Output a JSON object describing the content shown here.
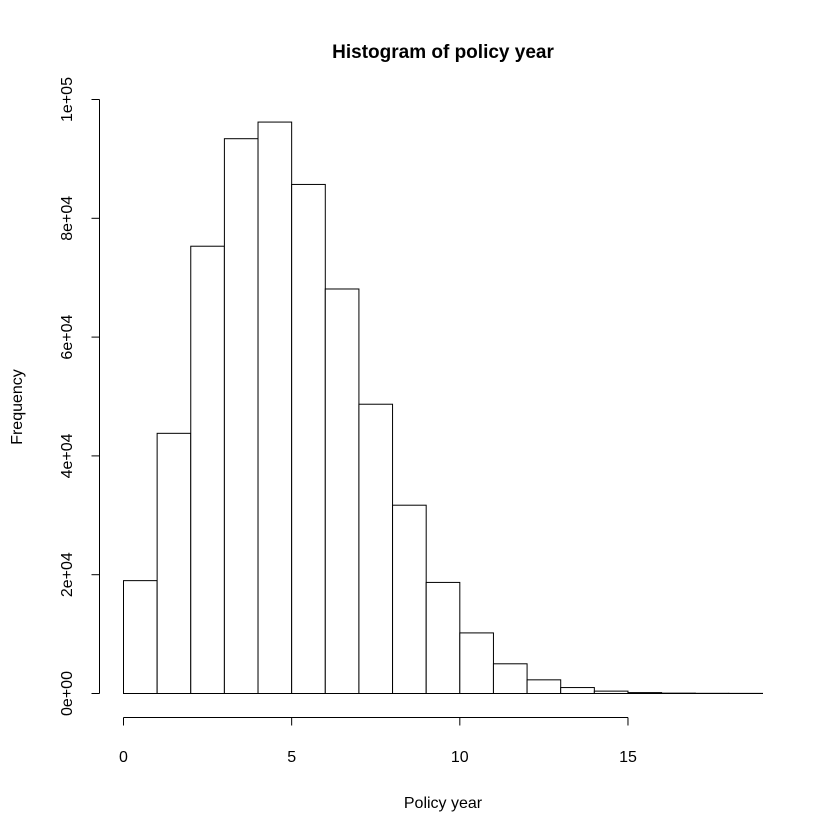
{
  "chart_data": {
    "type": "bar",
    "title": "Histogram of policy year",
    "xlabel": "Policy year",
    "ylabel": "Frequency",
    "bin_edges": [
      0,
      1,
      2,
      3,
      4,
      5,
      6,
      7,
      8,
      9,
      10,
      11,
      12,
      13,
      14,
      15,
      16,
      17,
      18,
      19
    ],
    "values": [
      19000,
      43800,
      75300,
      93400,
      96200,
      85700,
      68100,
      48700,
      31700,
      18700,
      10200,
      5000,
      2300,
      1000,
      400,
      150,
      60,
      30,
      20
    ],
    "xlim": [
      0,
      19
    ],
    "ylim": [
      0,
      100000
    ],
    "xticks": [
      0,
      5,
      10,
      15
    ],
    "xtick_labels": [
      "0",
      "5",
      "10",
      "15"
    ],
    "yticks": [
      0,
      20000,
      40000,
      60000,
      80000,
      100000
    ],
    "ytick_labels": [
      "0e+00",
      "2e+04",
      "4e+04",
      "6e+04",
      "8e+04",
      "1e+05"
    ],
    "grid": false,
    "legend": "none"
  }
}
